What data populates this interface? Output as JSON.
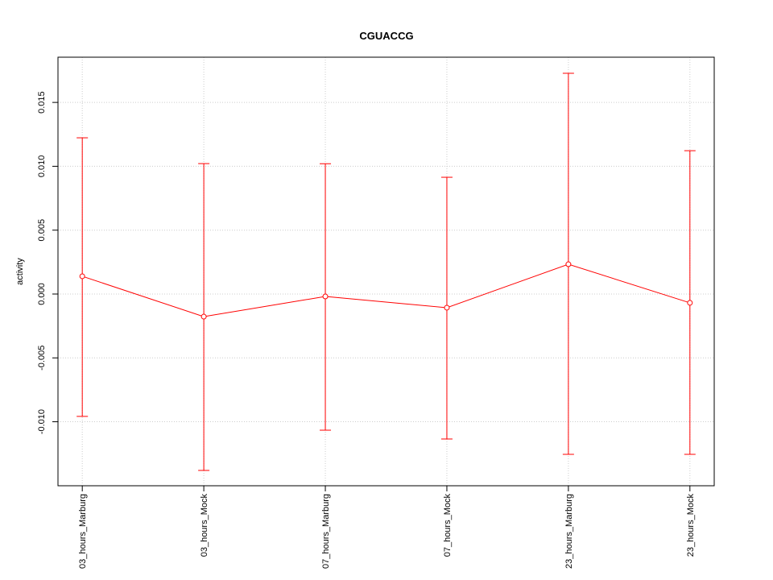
{
  "chart_data": {
    "type": "errorbar-line",
    "title": "CGUACCG",
    "y_label": "activity",
    "categories": [
      "03_hours_Marburg",
      "03_hours_Mock",
      "07_hours_Marburg",
      "07_hours_Mock",
      "23_hours_Marburg",
      "23_hours_Mock"
    ],
    "series": [
      {
        "color": "#ff0000",
        "values": [
          0.00139,
          -0.00177,
          -0.00019,
          -0.00107,
          0.00233,
          -0.00069
        ],
        "upper": [
          0.01223,
          0.01021,
          0.0102,
          0.00914,
          0.01728,
          0.01122
        ],
        "lower": [
          -0.00958,
          -0.01381,
          -0.01066,
          -0.01135,
          -0.01255,
          -0.01255
        ]
      }
    ],
    "ylim": [
      -0.01501,
      0.01854
    ],
    "yticks": [
      {
        "value": -0.01,
        "label": "-0.010"
      },
      -0.005,
      {
        "value": 0,
        "label": "0.000"
      },
      0.005,
      {
        "value": 0.01,
        "label": "0.010"
      },
      0.015
    ],
    "grid": true
  }
}
